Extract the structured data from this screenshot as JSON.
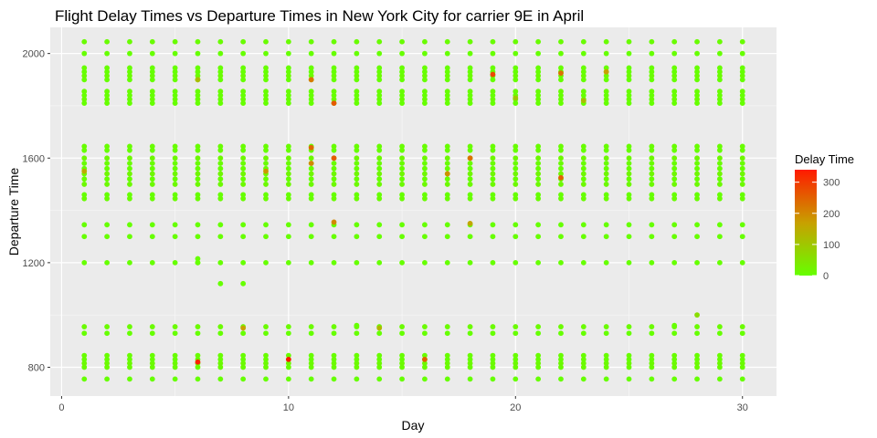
{
  "chart_data": {
    "type": "scatter",
    "title": "Flight Delay Times vs Departure Times in New York City for carrier 9E in April",
    "xlabel": "Day",
    "ylabel": "Departure Time",
    "xlim": [
      -0.5,
      31.5
    ],
    "ylim": [
      690,
      2100
    ],
    "x_ticks": [
      0,
      10,
      20,
      30
    ],
    "x_tick_labels": [
      "0",
      "10",
      "20",
      "30"
    ],
    "y_ticks": [
      800,
      1200,
      1600,
      2000
    ],
    "y_tick_labels": [
      "800",
      "1200",
      "1600",
      "2000"
    ],
    "grid": true,
    "panel_background": "#ebebeb",
    "legend": {
      "title": "Delay Time",
      "position": "right",
      "labels": [
        "0",
        "100",
        "200",
        "300"
      ],
      "values": [
        0,
        100,
        200,
        300
      ],
      "color_low": "#66ff00",
      "color_mid": "#c8a000",
      "color_high": "#ff1a00",
      "max_value": 340
    },
    "schedule": [
      {
        "dep": 755,
        "delay": 0
      },
      {
        "dep": 800,
        "delay": 5
      },
      {
        "dep": 815,
        "delay": 10
      },
      {
        "dep": 830,
        "delay": 0
      },
      {
        "dep": 845,
        "delay": 3
      },
      {
        "dep": 930,
        "delay": 0
      },
      {
        "dep": 955,
        "delay": 8
      },
      {
        "dep": 1200,
        "delay": 0
      },
      {
        "dep": 1300,
        "delay": 2
      },
      {
        "dep": 1345,
        "delay": 0
      },
      {
        "dep": 1445,
        "delay": 5
      },
      {
        "dep": 1460,
        "delay": 0
      },
      {
        "dep": 1500,
        "delay": 10
      },
      {
        "dep": 1520,
        "delay": 0
      },
      {
        "dep": 1540,
        "delay": 15
      },
      {
        "dep": 1560,
        "delay": 0
      },
      {
        "dep": 1580,
        "delay": 5
      },
      {
        "dep": 1600,
        "delay": 12
      },
      {
        "dep": 1630,
        "delay": 0
      },
      {
        "dep": 1645,
        "delay": 4
      },
      {
        "dep": 1810,
        "delay": 0
      },
      {
        "dep": 1825,
        "delay": 6
      },
      {
        "dep": 1840,
        "delay": 0
      },
      {
        "dep": 1855,
        "delay": 3
      },
      {
        "dep": 1900,
        "delay": 0
      },
      {
        "dep": 1915,
        "delay": 8
      },
      {
        "dep": 1930,
        "delay": 0
      },
      {
        "dep": 1945,
        "delay": 2
      },
      {
        "dep": 2000,
        "delay": 0
      },
      {
        "dep": 2045,
        "delay": 5
      }
    ],
    "special_points": [
      {
        "x": 6,
        "y": 820,
        "delay": 330
      },
      {
        "x": 10,
        "y": 830,
        "delay": 340
      },
      {
        "x": 16,
        "y": 830,
        "delay": 250
      },
      {
        "x": 19,
        "y": 1920,
        "delay": 280
      },
      {
        "x": 22,
        "y": 1925,
        "delay": 230
      },
      {
        "x": 22,
        "y": 1525,
        "delay": 250
      },
      {
        "x": 11,
        "y": 1640,
        "delay": 240
      },
      {
        "x": 12,
        "y": 1600,
        "delay": 260
      },
      {
        "x": 12,
        "y": 1810,
        "delay": 260
      },
      {
        "x": 11,
        "y": 1900,
        "delay": 220
      },
      {
        "x": 18,
        "y": 1600,
        "delay": 230
      },
      {
        "x": 8,
        "y": 950,
        "delay": 170
      },
      {
        "x": 12,
        "y": 1355,
        "delay": 200
      },
      {
        "x": 18,
        "y": 1350,
        "delay": 160
      },
      {
        "x": 14,
        "y": 950,
        "delay": 130
      },
      {
        "x": 24,
        "y": 1930,
        "delay": 170
      },
      {
        "x": 9,
        "y": 1550,
        "delay": 180
      },
      {
        "x": 11,
        "y": 1580,
        "delay": 200
      },
      {
        "x": 20,
        "y": 1830,
        "delay": 100
      },
      {
        "x": 7,
        "y": 1120,
        "delay": 0
      },
      {
        "x": 8,
        "y": 1120,
        "delay": 0
      },
      {
        "x": 6,
        "y": 1200,
        "delay": 0
      },
      {
        "x": 6,
        "y": 1215,
        "delay": 0
      },
      {
        "x": 28,
        "y": 1000,
        "delay": 60
      },
      {
        "x": 27,
        "y": 960,
        "delay": 0
      },
      {
        "x": 13,
        "y": 960,
        "delay": 0
      },
      {
        "x": 1,
        "y": 1550,
        "delay": 150
      },
      {
        "x": 6,
        "y": 1900,
        "delay": 120
      },
      {
        "x": 17,
        "y": 1540,
        "delay": 190
      },
      {
        "x": 23,
        "y": 1820,
        "delay": 120
      }
    ]
  }
}
